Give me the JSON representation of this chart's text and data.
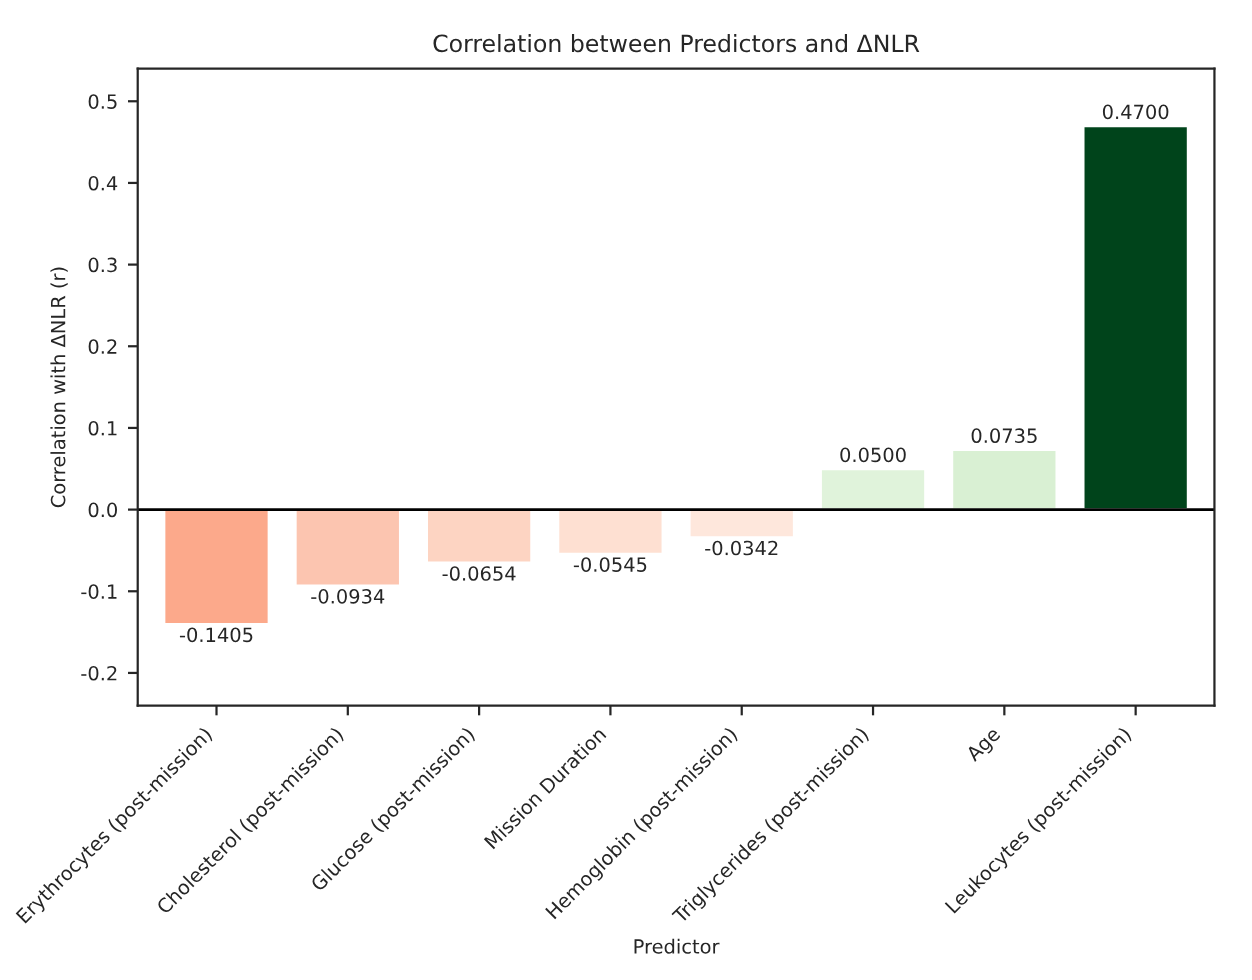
{
  "chart_data": {
    "type": "bar",
    "title": "Correlation between Predictors and ΔNLR",
    "xlabel": "Predictor",
    "ylabel": "Correlation with ΔNLR (r)",
    "categories": [
      "Erythrocytes (post-mission)",
      "Cholesterol (post-mission)",
      "Glucose (post-mission)",
      "Mission Duration",
      "Hemoglobin (post-mission)",
      "Triglycerides (post-mission)",
      "Age",
      "Leukocytes (post-mission)"
    ],
    "values": [
      -0.1405,
      -0.0934,
      -0.0654,
      -0.0545,
      -0.0342,
      0.05,
      0.0735,
      0.47
    ],
    "value_labels": [
      "-0.1405",
      "-0.0934",
      "-0.0654",
      "-0.0545",
      "-0.0342",
      "0.0500",
      "0.0735",
      "0.4700"
    ],
    "colors": [
      "#fca98b",
      "#fcc5b0",
      "#fdd4c2",
      "#fee0d2",
      "#fee7dc",
      "#e0f3db",
      "#d9f0d3",
      "#00441b"
    ],
    "ylim": [
      -0.24,
      0.54
    ],
    "yticks": [
      -0.2,
      -0.1,
      {
        "value": 0,
        "label": "0.0"
      },
      0.1,
      0.2,
      0.3,
      0.4,
      0.5
    ],
    "ref_lines": [
      {
        "axis": "y",
        "value": 0,
        "color": "#000000"
      }
    ],
    "grid": false,
    "legend": false
  }
}
